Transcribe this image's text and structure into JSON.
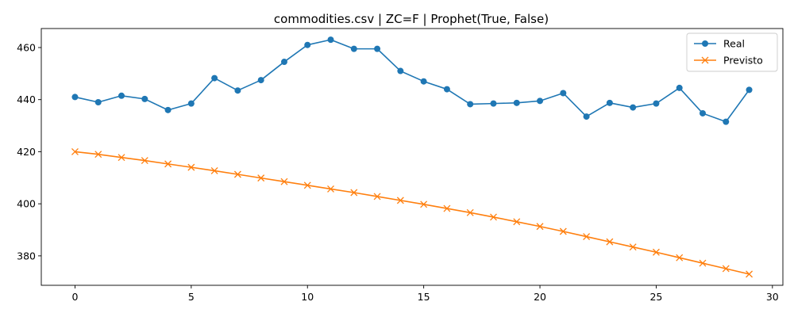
{
  "chart_data": {
    "type": "line",
    "title": "commodities.csv | ZC=F | Prophet(True, False)",
    "xlabel": "",
    "ylabel": "",
    "xlim": [
      -1.45,
      30.45
    ],
    "ylim": [
      368.7,
      467.3
    ],
    "xticks": [
      0,
      5,
      10,
      15,
      20,
      25,
      30
    ],
    "yticks": [
      380,
      400,
      420,
      440,
      460
    ],
    "grid": false,
    "legend_position": "top-right",
    "x": [
      0,
      1,
      2,
      3,
      4,
      5,
      6,
      7,
      8,
      9,
      10,
      11,
      12,
      13,
      14,
      15,
      16,
      17,
      18,
      19,
      20,
      21,
      22,
      23,
      24,
      25,
      26,
      27,
      28,
      29
    ],
    "series": [
      {
        "name": "Real",
        "color": "#1f77b4",
        "marker": "circle",
        "values": [
          441.0,
          439.0,
          441.5,
          440.25,
          436.0,
          438.5,
          448.25,
          443.5,
          447.5,
          454.5,
          461.0,
          463.0,
          459.5,
          459.5,
          451.0,
          447.0,
          444.0,
          438.25,
          438.5,
          438.75,
          439.5,
          442.5,
          433.5,
          438.75,
          437.0,
          438.5,
          444.5,
          434.75,
          431.5,
          443.75
        ]
      },
      {
        "name": "Previsto",
        "color": "#ff7f0e",
        "marker": "x",
        "values": [
          420.0,
          419.0,
          417.8,
          416.6,
          415.3,
          414.0,
          412.7,
          411.3,
          409.9,
          408.5,
          407.1,
          405.7,
          404.3,
          402.8,
          401.3,
          399.8,
          398.2,
          396.6,
          394.9,
          393.1,
          391.3,
          389.4,
          387.4,
          385.4,
          383.4,
          381.4,
          379.3,
          377.2,
          375.1,
          373.0
        ]
      }
    ]
  }
}
